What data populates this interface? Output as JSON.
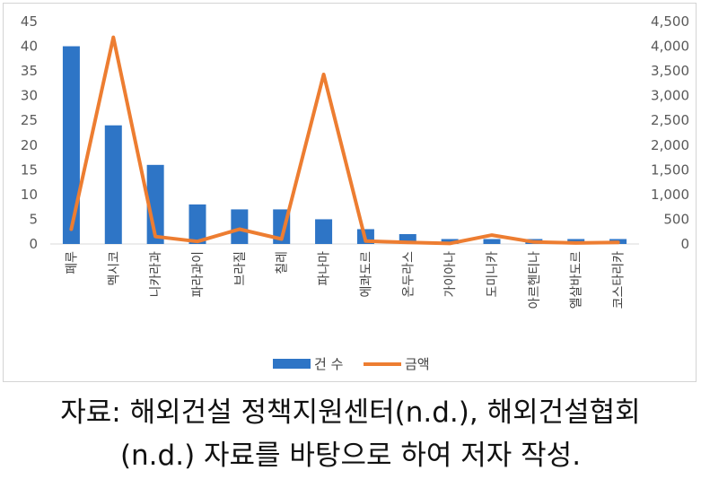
{
  "chart_data": {
    "type": "bar+line",
    "categories": [
      "페루",
      "멕시코",
      "니카라과",
      "파라과이",
      "브라질",
      "칠레",
      "파나마",
      "에콰도르",
      "온두라스",
      "가이아나",
      "도미니카",
      "아르헨티나",
      "엘살바도르",
      "코스타리카"
    ],
    "series": [
      {
        "name": "건 수",
        "type": "bar",
        "axis": "left",
        "color": "#2e75c6",
        "values": [
          40,
          24,
          16,
          8,
          7,
          7,
          5,
          3,
          2,
          1,
          1,
          1,
          1,
          1
        ]
      },
      {
        "name": "금액",
        "type": "line",
        "axis": "right",
        "color": "#ed7d31",
        "values": [
          300,
          4180,
          150,
          50,
          300,
          100,
          3430,
          60,
          30,
          10,
          180,
          40,
          20,
          30
        ]
      }
    ],
    "ylim_left": [
      0,
      45
    ],
    "yticks_left": [
      "0",
      "5",
      "10",
      "15",
      "20",
      "25",
      "30",
      "35",
      "40",
      "45"
    ],
    "ylim_right": [
      0,
      4500
    ],
    "yticks_right": [
      "0",
      "500",
      "1,000",
      "1,500",
      "2,000",
      "2,500",
      "3,000",
      "3,500",
      "4,000",
      "4,500"
    ],
    "grid": false,
    "legend_position": "bottom"
  },
  "caption": {
    "line1": "자료:  해외건설 정책지원센터(n.d.),  해외건설협회",
    "line2": "(n.d.) 자료를 바탕으로 하여 저자 작성."
  }
}
